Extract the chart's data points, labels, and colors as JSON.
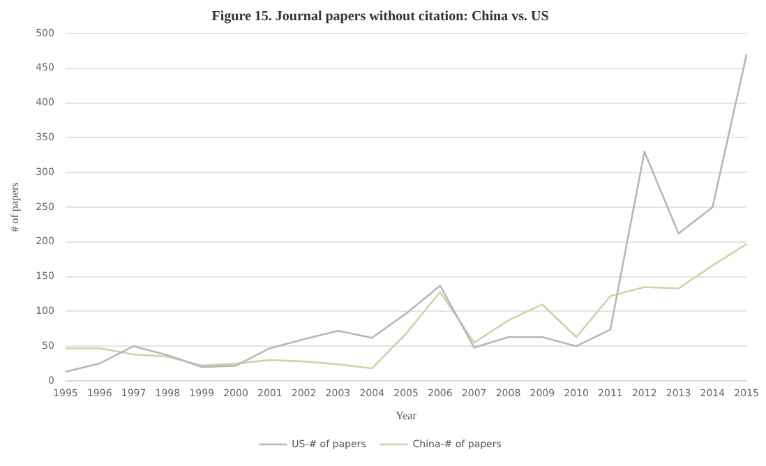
{
  "chart_data": {
    "type": "line",
    "title": "Figure 15. Journal papers without citation: China vs. US",
    "xlabel": "Year",
    "ylabel": "# of papers",
    "categories": [
      "1995",
      "1996",
      "1997",
      "1998",
      "1999",
      "2000",
      "2001",
      "2002",
      "2003",
      "2004",
      "2005",
      "2006",
      "2007",
      "2008",
      "2009",
      "2010",
      "2011",
      "2012",
      "2013",
      "2014",
      "2015"
    ],
    "series": [
      {
        "name": "US-# of papers",
        "color": "#b4b8bc",
        "values": [
          13,
          25,
          50,
          37,
          20,
          22,
          47,
          60,
          72,
          62,
          97,
          137,
          48,
          63,
          63,
          50,
          74,
          330,
          212,
          250,
          470
        ]
      },
      {
        "name": "China-# of papers",
        "color": "#d8cfa8",
        "values": [
          47,
          47,
          38,
          35,
          22,
          25,
          30,
          28,
          24,
          18,
          68,
          128,
          55,
          87,
          110,
          63,
          122,
          135,
          133,
          166,
          197
        ]
      }
    ],
    "ylim": [
      0,
      500
    ],
    "yticks": [
      0,
      50,
      100,
      150,
      200,
      250,
      300,
      350,
      400,
      450,
      500
    ],
    "grid": "y",
    "legend": "bottom",
    "marker": "none",
    "line_style": "solid"
  }
}
